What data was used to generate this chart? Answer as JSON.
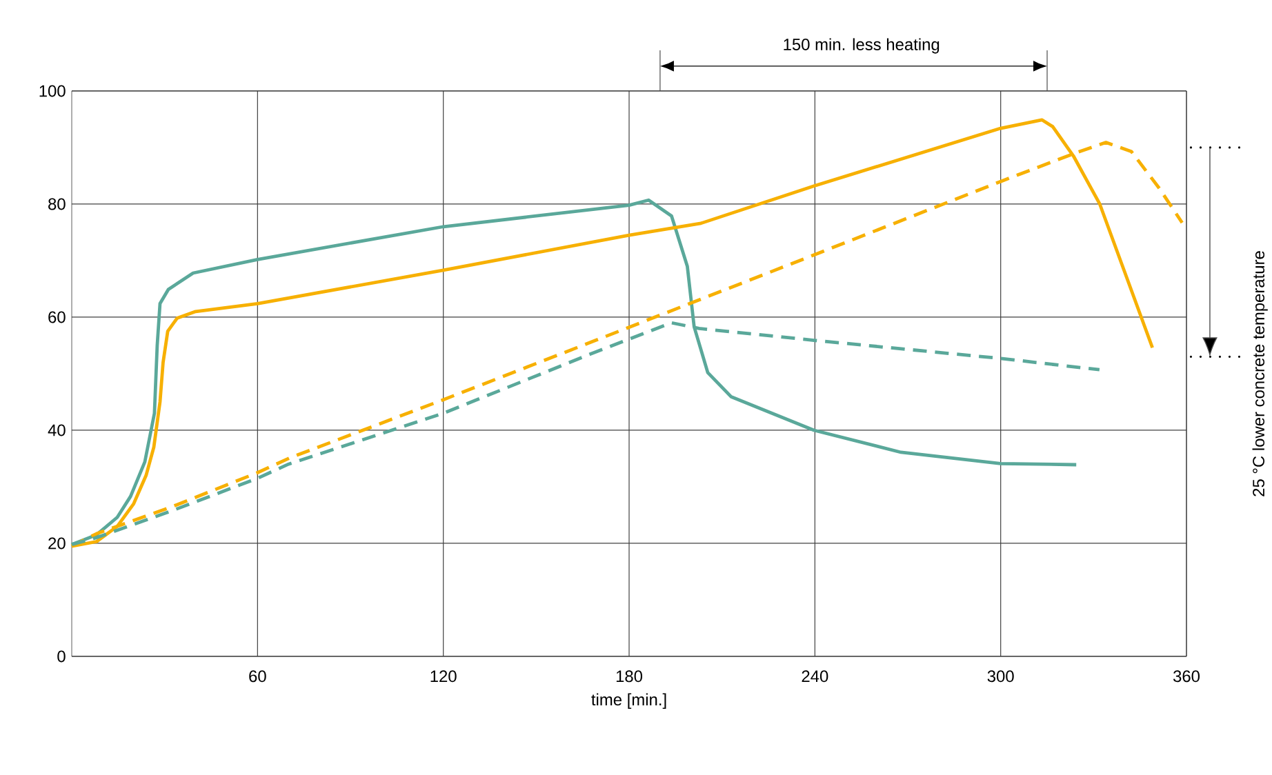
{
  "chart_data": {
    "type": "line",
    "xlabel": "time [min.]",
    "xlim": [
      0,
      360
    ],
    "xticks": [
      60,
      120,
      180,
      240,
      300,
      360
    ],
    "ylim": [
      0,
      100
    ],
    "yticks": [
      0,
      20,
      40,
      60,
      80,
      100
    ],
    "grid": true,
    "annotations": [
      "150 min. less heating",
      "25 °C lower concrete temperature"
    ],
    "series": [
      {
        "color": "#5aa89a",
        "line_style": "solid",
        "x": [
          0,
          8,
          14.7,
          19,
          23.6,
          26.7,
          27.6,
          28.5,
          31.2,
          39.2,
          60,
          120,
          180,
          186.3,
          193.7,
          198.8,
          201,
          205.4,
          213,
          239.7,
          267.8,
          300,
          324.4
        ],
        "values": [
          19.8,
          21.5,
          24.6,
          28.3,
          34.4,
          43,
          55,
          62.4,
          64.9,
          67.8,
          70.2,
          76,
          79.8,
          80.7,
          77.9,
          69,
          58.3,
          50.2,
          45.9,
          40,
          36.1,
          34.1,
          33.9
        ]
      },
      {
        "color": "#f7b000",
        "line_style": "solid",
        "x": [
          0,
          8,
          14.7,
          20,
          24,
          26.5,
          28.5,
          29.5,
          31,
          34,
          40,
          60,
          120,
          180,
          203.2,
          239.7,
          300,
          313.3,
          316.8,
          323.5,
          332,
          349
        ],
        "values": [
          19.5,
          20.3,
          23,
          27,
          32,
          37,
          45,
          52,
          57.5,
          59.8,
          61,
          62.4,
          68.3,
          74.5,
          76.6,
          83.2,
          93.4,
          94.9,
          93.7,
          88.5,
          80,
          54.6
        ]
      },
      {
        "color": "#f7b000",
        "line_style": "dashed",
        "x": [
          0,
          8,
          31.6,
          60,
          70.4,
          120,
          169.2,
          239.7,
          300,
          323.5,
          334,
          342.2,
          351.2,
          358.6
        ],
        "values": [
          19.5,
          21.7,
          26.3,
          32.5,
          35.1,
          45.4,
          55.9,
          71,
          84,
          88.9,
          90.9,
          89.3,
          82.8,
          76.7
        ]
      },
      {
        "color": "#5aa89a",
        "line_style": "dashed",
        "x": [
          0,
          8,
          31.6,
          60,
          70,
          120,
          167.6,
          193.7,
          202.6,
          239.7,
          300,
          331.9
        ],
        "values": [
          19.8,
          21,
          25.6,
          31.5,
          34,
          43,
          53.5,
          59,
          58,
          55.9,
          52.7,
          50.7
        ]
      }
    ]
  }
}
